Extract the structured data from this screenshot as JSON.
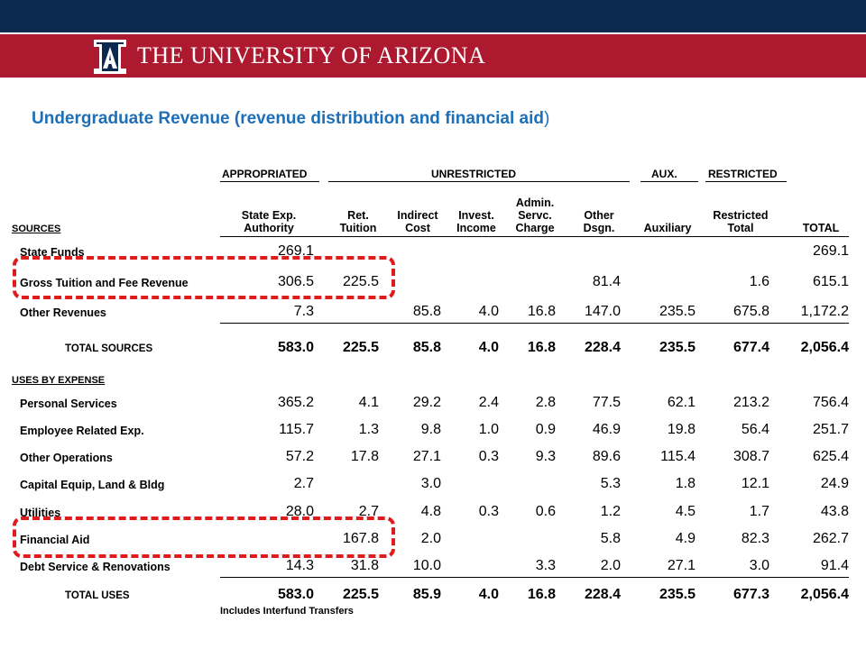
{
  "header": {
    "university_name": "THE UNIVERSITY OF ARIZONA",
    "colors": {
      "navy": "#0c2a4f",
      "red": "#ad1a2f",
      "title_blue": "#1d6fb8",
      "highlight": "#e01b1b"
    }
  },
  "slide": {
    "title": "Undergraduate Revenue (revenue distribution and  financial aid",
    "title_close": ")"
  },
  "table": {
    "groups": {
      "appropriated": "APPROPRIATED",
      "unrestricted": "UNRESTRICTED",
      "aux": "AUX.",
      "restricted": "RESTRICTED"
    },
    "columns": [
      {
        "l1": "State Exp.",
        "l2": "Authority"
      },
      {
        "l1": "Ret.",
        "l2": "Tuition"
      },
      {
        "l1": "Indirect",
        "l2": "Cost"
      },
      {
        "l1": "Invest.",
        "l2": "Income"
      },
      {
        "l1": "Admin.",
        "l2": "Servc.",
        "l3": "Charge"
      },
      {
        "l1": "Other",
        "l2": "Dsgn."
      },
      {
        "l1": "",
        "l2": "Auxiliary"
      },
      {
        "l1": "Restricted",
        "l2": "Total"
      },
      {
        "l1": "",
        "l2": "TOTAL"
      }
    ],
    "sources_label": "SOURCES",
    "sources": [
      {
        "label": "State Funds",
        "values": [
          "269.1",
          "",
          "",
          "",
          "",
          "",
          "",
          "",
          "269.1"
        ]
      },
      {
        "label": "Gross Tuition and Fee Revenue",
        "values": [
          "306.5",
          "225.5",
          "",
          "",
          "",
          "81.4",
          "",
          "1.6",
          "615.1"
        ]
      },
      {
        "label": "Other Revenues",
        "values": [
          "7.3",
          "",
          "85.8",
          "4.0",
          "16.8",
          "147.0",
          "235.5",
          "675.8",
          "1,172.2"
        ]
      }
    ],
    "total_sources": {
      "label": "TOTAL SOURCES",
      "values": [
        "583.0",
        "225.5",
        "85.8",
        "4.0",
        "16.8",
        "228.4",
        "235.5",
        "677.4",
        "2,056.4"
      ]
    },
    "uses_label": "USES BY EXPENSE",
    "uses": [
      {
        "label": "Personal Services",
        "values": [
          "365.2",
          "4.1",
          "29.2",
          "2.4",
          "2.8",
          "77.5",
          "62.1",
          "213.2",
          "756.4"
        ]
      },
      {
        "label": "Employee Related Exp.",
        "values": [
          "115.7",
          "1.3",
          "9.8",
          "1.0",
          "0.9",
          "46.9",
          "19.8",
          "56.4",
          "251.7"
        ]
      },
      {
        "label": "Other Operations",
        "values": [
          "57.2",
          "17.8",
          "27.1",
          "0.3",
          "9.3",
          "89.6",
          "115.4",
          "308.7",
          "625.4"
        ]
      },
      {
        "label": "Capital Equip, Land & Bldg",
        "values": [
          "2.7",
          "",
          "3.0",
          "",
          "",
          "5.3",
          "1.8",
          "12.1",
          "24.9"
        ]
      },
      {
        "label": "Utilities",
        "values": [
          "28.0",
          "2.7",
          "4.8",
          "0.3",
          "0.6",
          "1.2",
          "4.5",
          "1.7",
          "43.8"
        ]
      },
      {
        "label": "Financial Aid",
        "values": [
          "",
          "167.8",
          "2.0",
          "",
          "",
          "5.8",
          "4.9",
          "82.3",
          "262.7"
        ]
      },
      {
        "label": "Debt Service & Renovations",
        "values": [
          "14.3",
          "31.8",
          "10.0",
          "",
          "3.3",
          "2.0",
          "27.1",
          "3.0",
          "91.4"
        ]
      }
    ],
    "total_uses": {
      "label": "TOTAL USES",
      "values": [
        "583.0",
        "225.5",
        "85.9",
        "4.0",
        "16.8",
        "228.4",
        "235.5",
        "677.3",
        "2,056.4"
      ]
    },
    "footnote": "Includes Interfund Transfers"
  }
}
